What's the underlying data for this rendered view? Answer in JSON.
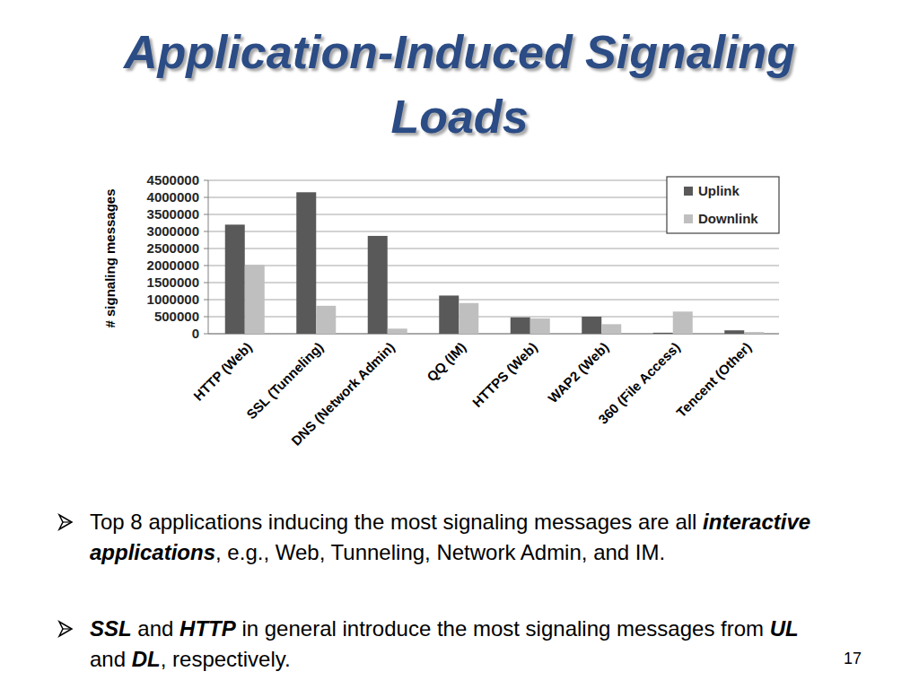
{
  "title": "Application-Induced Signaling Loads",
  "bullets": [
    [
      {
        "text": "Top 8 applications inducing the most signaling messages are all "
      },
      {
        "text": "interactive applications",
        "emphasis": true
      },
      {
        "text": ", e.g., Web, Tunneling, Network Admin, and IM."
      }
    ],
    [
      {
        "text": "SSL",
        "emphasis": true
      },
      {
        "text": " and "
      },
      {
        "text": "HTTP",
        "emphasis": true
      },
      {
        "text": " in general introduce the most signaling messages from "
      },
      {
        "text": "UL",
        "emphasis": true
      },
      {
        "text": " and "
      },
      {
        "text": "DL",
        "emphasis": true
      },
      {
        "text": ", respectively."
      }
    ]
  ],
  "page_number": "17",
  "chart_data": {
    "type": "bar",
    "y_label": "# signaling messages",
    "categories": [
      "HTTP (Web)",
      "SSL (Tunneling)",
      "DNS (Network Admin)",
      "QQ (IM)",
      "HTTPS (Web)",
      "WAP2 (Web)",
      "360 (File Access)",
      "Tencent (Other)"
    ],
    "series": [
      {
        "name": "Uplink",
        "color": "#595959",
        "values": [
          3200000,
          4150000,
          2870000,
          1120000,
          480000,
          500000,
          30000,
          100000
        ]
      },
      {
        "name": "Downlink",
        "color": "#bfbfbf",
        "values": [
          2020000,
          820000,
          150000,
          900000,
          450000,
          280000,
          650000,
          50000
        ]
      }
    ],
    "ylim": [
      0,
      4500000
    ],
    "yticks": [
      0,
      500000,
      1000000,
      1500000,
      2000000,
      2500000,
      3000000,
      3500000,
      4000000,
      4500000
    ],
    "grid": true,
    "legend": "top-right"
  }
}
